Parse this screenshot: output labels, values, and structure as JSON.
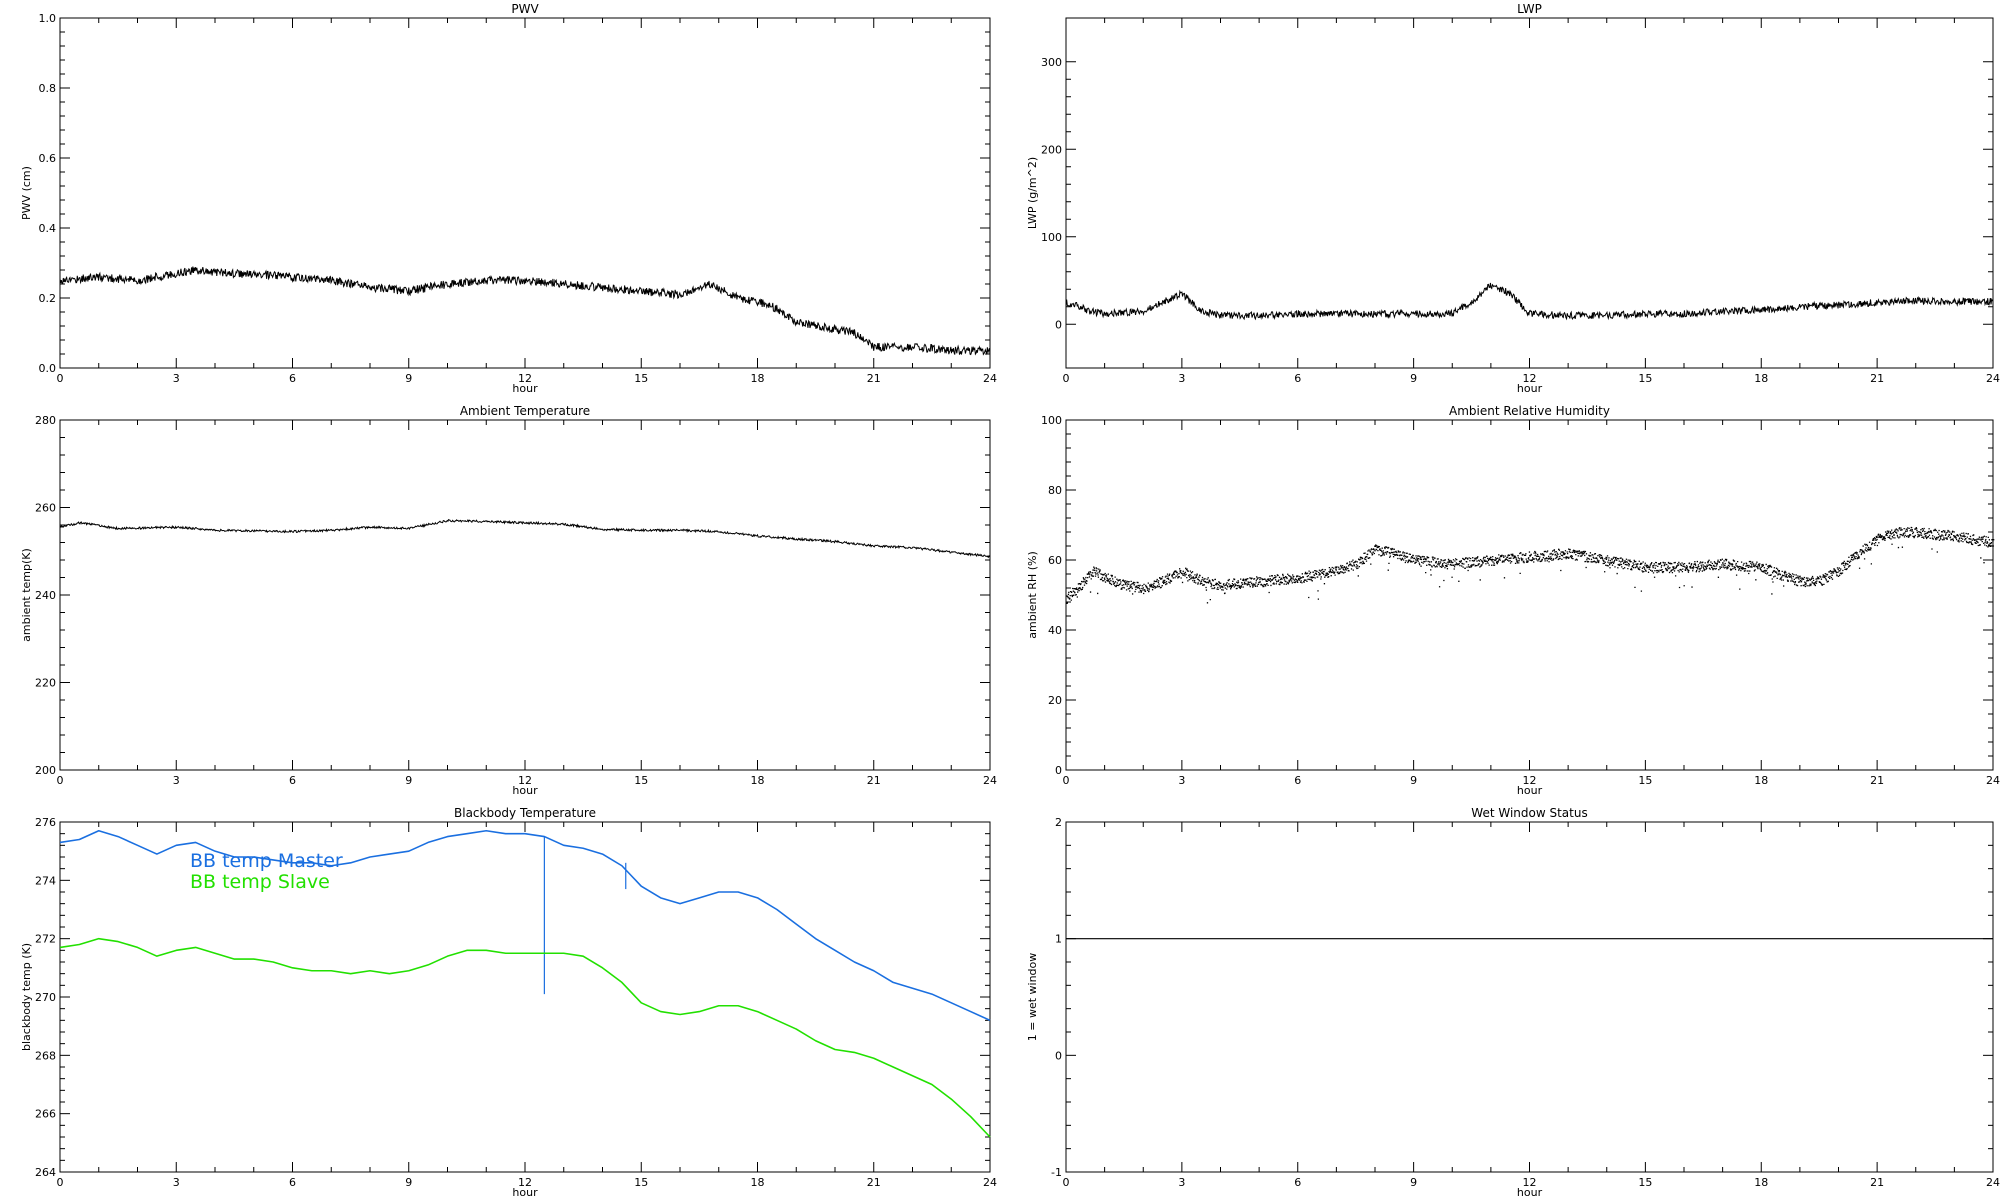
{
  "chart_data": [
    {
      "type": "line",
      "title": "PWV",
      "xlabel": "hour",
      "ylabel": "PWV (cm)",
      "xlim": [
        0,
        24
      ],
      "ylim": [
        0,
        1.0
      ],
      "xticks": [
        0,
        3,
        6,
        9,
        12,
        15,
        18,
        21,
        24
      ],
      "yticks": [
        0.0,
        0.2,
        0.4,
        0.6,
        0.8,
        1.0
      ],
      "ytick_labels": [
        "0.0",
        "0.2",
        "0.4",
        "0.6",
        "0.8",
        "1.0"
      ],
      "grid": false,
      "series": [
        {
          "color": "#000000",
          "style": "noisy",
          "noise": 0.012,
          "x": [
            0,
            1,
            2,
            3,
            3.5,
            4.5,
            6,
            7,
            8,
            9,
            10,
            11,
            12,
            13,
            14,
            15,
            16,
            16.8,
            17.5,
            18,
            18.5,
            19,
            20,
            20.5,
            21,
            22,
            23,
            24
          ],
          "y": [
            0.25,
            0.26,
            0.25,
            0.27,
            0.28,
            0.27,
            0.26,
            0.25,
            0.23,
            0.22,
            0.24,
            0.25,
            0.25,
            0.24,
            0.23,
            0.22,
            0.21,
            0.24,
            0.2,
            0.19,
            0.17,
            0.13,
            0.11,
            0.1,
            0.06,
            0.06,
            0.05,
            0.05
          ]
        }
      ]
    },
    {
      "type": "line",
      "title": "LWP",
      "xlabel": "hour",
      "ylabel": "LWP (g/m^2)",
      "xlim": [
        0,
        24
      ],
      "ylim": [
        -50,
        350
      ],
      "xticks": [
        0,
        3,
        6,
        9,
        12,
        15,
        18,
        21,
        24
      ],
      "yticks": [
        0,
        100,
        200,
        300
      ],
      "ytick_labels": [
        "0",
        "100",
        "200",
        "300"
      ],
      "grid": false,
      "series": [
        {
          "color": "#000000",
          "style": "noisy",
          "noise": 4,
          "x": [
            0,
            0.3,
            0.6,
            1,
            2,
            2.5,
            3,
            3.5,
            4,
            5,
            6,
            7,
            8,
            9,
            10,
            10.5,
            11,
            11.5,
            12,
            13,
            14,
            15,
            16,
            17,
            18,
            19,
            20,
            21,
            22,
            23,
            24
          ],
          "y": [
            25,
            22,
            15,
            12,
            15,
            25,
            35,
            15,
            10,
            10,
            12,
            12,
            12,
            12,
            12,
            25,
            45,
            35,
            12,
            10,
            10,
            12,
            12,
            15,
            16,
            20,
            22,
            25,
            27,
            26,
            26
          ]
        }
      ]
    },
    {
      "type": "line",
      "title": "Ambient Temperature",
      "xlabel": "hour",
      "ylabel": "ambient temp(K)",
      "xlim": [
        0,
        24
      ],
      "ylim": [
        200,
        280
      ],
      "xticks": [
        0,
        3,
        6,
        9,
        12,
        15,
        18,
        21,
        24
      ],
      "yticks": [
        200,
        220,
        240,
        260,
        280
      ],
      "ytick_labels": [
        "200",
        "220",
        "240",
        "260",
        "280"
      ],
      "grid": false,
      "series": [
        {
          "color": "#000000",
          "style": "noisy",
          "noise": 0.25,
          "x": [
            0,
            0.5,
            1.5,
            3,
            4,
            6,
            7,
            8,
            9,
            10,
            11,
            12,
            13,
            14,
            15,
            16,
            17,
            18,
            19,
            20,
            21,
            22,
            23,
            24
          ],
          "y": [
            255.5,
            256.5,
            255.2,
            255.5,
            254.8,
            254.5,
            254.8,
            255.5,
            255.2,
            257,
            256.8,
            256.5,
            256.2,
            255,
            254.8,
            254.8,
            254.5,
            253.5,
            252.8,
            252.2,
            251.2,
            250.8,
            249.8,
            248.8
          ]
        }
      ]
    },
    {
      "type": "scatter",
      "title": "Ambient Relative Humidity",
      "xlabel": "hour",
      "ylabel": "ambient RH (%)",
      "xlim": [
        0,
        24
      ],
      "ylim": [
        0,
        100
      ],
      "xticks": [
        0,
        3,
        6,
        9,
        12,
        15,
        18,
        21,
        24
      ],
      "yticks": [
        0,
        20,
        40,
        60,
        80,
        100
      ],
      "ytick_labels": [
        "0",
        "20",
        "40",
        "60",
        "80",
        "100"
      ],
      "grid": false,
      "series": [
        {
          "color": "#000000",
          "style": "dots",
          "noise": 1.5,
          "x": [
            0,
            0.3,
            0.7,
            1,
            1.5,
            2,
            2.5,
            3,
            3.5,
            4,
            5,
            6,
            7,
            7.5,
            8,
            8.5,
            9,
            10,
            11,
            12,
            13,
            14,
            15,
            16,
            17,
            18,
            19,
            19.5,
            20,
            20.5,
            21,
            21.5,
            22,
            23,
            24
          ],
          "y": [
            49,
            52,
            57,
            55,
            53,
            52,
            54,
            57,
            54,
            53,
            54,
            55,
            57,
            59,
            63,
            62,
            60,
            59,
            60,
            61,
            62,
            60,
            58,
            58,
            59,
            58,
            54,
            54,
            57,
            62,
            66,
            68,
            68,
            67,
            65
          ]
        }
      ]
    },
    {
      "type": "line",
      "title": "Blackbody Temperature",
      "xlabel": "hour",
      "ylabel": "blackbody temp (K)",
      "xlim": [
        0,
        24
      ],
      "ylim": [
        264,
        276
      ],
      "xticks": [
        0,
        3,
        6,
        9,
        12,
        15,
        18,
        21,
        24
      ],
      "yticks": [
        264,
        266,
        268,
        270,
        272,
        274,
        276
      ],
      "ytick_labels": [
        "264",
        "266",
        "268",
        "270",
        "272",
        "274",
        "276"
      ],
      "grid": false,
      "legend": [
        "BB temp Master",
        "BB temp Slave"
      ],
      "series": [
        {
          "name": "BB temp Master",
          "color": "#1a6fe0",
          "style": "smooth",
          "x": [
            0,
            0.5,
            1,
            1.5,
            2,
            2.5,
            3,
            3.5,
            4,
            4.5,
            5,
            5.5,
            6,
            6.5,
            7,
            7.5,
            8,
            8.5,
            9,
            9.5,
            10,
            10.5,
            11,
            11.5,
            12,
            12.5,
            13,
            13.5,
            14,
            14.5,
            15,
            15.5,
            16,
            16.5,
            17,
            17.5,
            18,
            18.5,
            19,
            19.5,
            20,
            20.5,
            21,
            21.5,
            22,
            22.5,
            23,
            23.5,
            24
          ],
          "y": [
            275.3,
            275.4,
            275.7,
            275.5,
            275.2,
            274.9,
            275.2,
            275.3,
            275.0,
            274.8,
            274.8,
            274.7,
            274.6,
            274.6,
            274.5,
            274.6,
            274.8,
            274.9,
            275.0,
            275.3,
            275.5,
            275.6,
            275.7,
            275.6,
            275.6,
            275.5,
            275.2,
            275.1,
            274.9,
            274.5,
            273.8,
            273.4,
            273.2,
            273.4,
            273.6,
            273.6,
            273.4,
            273.0,
            272.5,
            272.0,
            271.6,
            271.2,
            270.9,
            270.5,
            270.3,
            270.1,
            269.8,
            269.5,
            269.2
          ],
          "spikes": [
            {
              "x": 12.5,
              "from": 275.5,
              "to": 270.1
            },
            {
              "x": 14.6,
              "from": 274.6,
              "to": 273.7
            }
          ]
        },
        {
          "name": "BB temp Slave",
          "color": "#22e000",
          "style": "smooth",
          "x": [
            0,
            0.5,
            1,
            1.5,
            2,
            2.5,
            3,
            3.5,
            4,
            4.5,
            5,
            5.5,
            6,
            6.5,
            7,
            7.5,
            8,
            8.5,
            9,
            9.5,
            10,
            10.5,
            11,
            11.5,
            12,
            12.5,
            13,
            13.5,
            14,
            14.5,
            15,
            15.5,
            16,
            16.5,
            17,
            17.5,
            18,
            18.5,
            19,
            19.5,
            20,
            20.5,
            21,
            21.5,
            22,
            22.5,
            23,
            23.5,
            24
          ],
          "y": [
            271.7,
            271.8,
            272.0,
            271.9,
            271.7,
            271.4,
            271.6,
            271.7,
            271.5,
            271.3,
            271.3,
            271.2,
            271.0,
            270.9,
            270.9,
            270.8,
            270.9,
            270.8,
            270.9,
            271.1,
            271.4,
            271.6,
            271.6,
            271.5,
            271.5,
            271.5,
            271.5,
            271.4,
            271.0,
            270.5,
            269.8,
            269.5,
            269.4,
            269.5,
            269.7,
            269.7,
            269.5,
            269.2,
            268.9,
            268.5,
            268.2,
            268.1,
            267.9,
            267.6,
            267.3,
            267.0,
            266.5,
            265.9,
            265.2
          ]
        }
      ]
    },
    {
      "type": "line",
      "title": "Wet Window Status",
      "xlabel": "hour",
      "ylabel": "1 = wet window",
      "xlim": [
        0,
        24
      ],
      "ylim": [
        -1,
        2
      ],
      "xticks": [
        0,
        3,
        6,
        9,
        12,
        15,
        18,
        21,
        24
      ],
      "yticks": [
        -1,
        0,
        1,
        2
      ],
      "ytick_labels": [
        "-1",
        "0",
        "1",
        "2"
      ],
      "grid": false,
      "series": [
        {
          "color": "#000000",
          "style": "plain",
          "x": [
            0,
            24
          ],
          "y": [
            1,
            1
          ]
        }
      ]
    }
  ]
}
